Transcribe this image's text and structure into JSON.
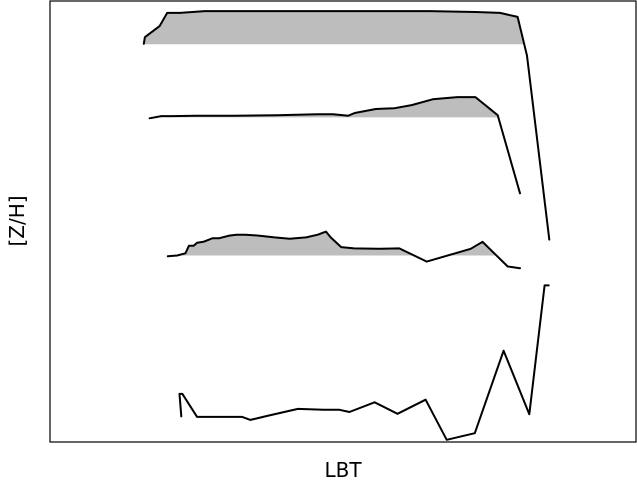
{
  "chart_data": {
    "type": "line",
    "title": "",
    "xlabel": "LBT",
    "ylabel": "[Z/H]",
    "xlim": [
      0,
      100
    ],
    "ylim": [
      0,
      100
    ],
    "grid": false,
    "legend": "none",
    "tick_labels": false,
    "colors": {
      "line": "#000000",
      "fill": "#bdbdbd",
      "frame": "#000000"
    },
    "series": [
      {
        "baseline": 90.2,
        "fill_below_line_to_baseline": true,
        "x": [
          16.0,
          16.2,
          18.7,
          19.6,
          20.0,
          22.2,
          26.4,
          43.5,
          64.8,
          72.6,
          76.8,
          79.8,
          81.4
        ],
        "y": [
          90.3,
          91.8,
          94.3,
          96.4,
          97.3,
          97.3,
          97.7,
          97.7,
          97.7,
          97.5,
          97.3,
          96.4,
          87.6
        ]
      },
      {
        "baseline": 73.6,
        "fill_below_line_to_baseline": true,
        "x": [
          17.0,
          19.0,
          20.9,
          24.8,
          31.5,
          38.7,
          45.6,
          48.3,
          50.9,
          52.0,
          55.6,
          58.8,
          61.7,
          65.3,
          69.5,
          72.6,
          76.4,
          80.2
        ],
        "y": [
          73.4,
          73.9,
          73.9,
          74.0,
          74.0,
          74.1,
          74.3,
          74.3,
          74.0,
          74.6,
          75.5,
          75.7,
          76.4,
          77.7,
          78.2,
          78.2,
          74.1,
          56.4
        ]
      },
      {
        "baseline": 42.3,
        "fill_below_line_to_baseline": true,
        "x": [
          20.1,
          21.7,
          23.1,
          23.7,
          24.5,
          25.1,
          26.2,
          27.7,
          28.8,
          30.6,
          31.8,
          33.4,
          35.6,
          38.3,
          40.9,
          43.7,
          45.7,
          47.1,
          47.9,
          49.7,
          51.9,
          55.8,
          59.6,
          64.3,
          71.8,
          73.8,
          78.1,
          80.2
        ],
        "y": [
          42.1,
          42.3,
          42.8,
          44.5,
          44.5,
          45.2,
          45.4,
          46.2,
          46.2,
          46.8,
          47.0,
          47.0,
          46.8,
          46.4,
          46.1,
          46.4,
          47.0,
          47.7,
          46.4,
          44.2,
          43.9,
          43.8,
          43.9,
          40.9,
          43.8,
          45.4,
          39.8,
          39.4
        ]
      },
      {
        "x": [
          22.4,
          22.1,
          22.6,
          25.1,
          32.8,
          34.2,
          37.0,
          42.3,
          46.7,
          48.1,
          49.4,
          51.1,
          55.4,
          59.3,
          64.1,
          67.7,
          72.5,
          77.4,
          81.8,
          84.4,
          84.8,
          85.1
        ],
        "y": [
          5.8,
          10.9,
          10.9,
          5.7,
          5.7,
          5.0,
          5.9,
          7.5,
          7.3,
          7.3,
          7.3,
          6.8,
          9.0,
          6.4,
          9.6,
          0.5,
          2.0,
          20.7,
          6.3,
          35.5,
          35.5,
          35.5
        ]
      }
    ],
    "connectors": [
      {
        "x": [
          81.4,
          85.2
        ],
        "y": [
          87.6,
          45.9
        ]
      }
    ]
  }
}
